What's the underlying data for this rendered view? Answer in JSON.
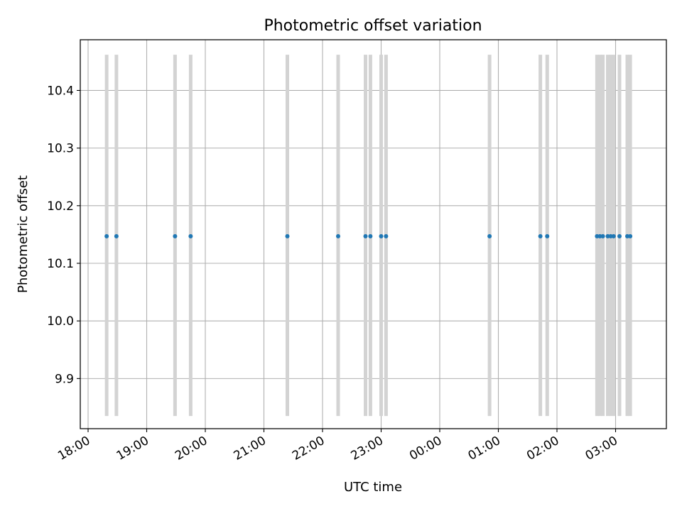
{
  "chart_data": {
    "type": "scatter",
    "title": "Photometric offset variation",
    "xlabel": "UTC time",
    "ylabel": "Photometric offset",
    "x_ticks": [
      "18:00",
      "19:00",
      "20:00",
      "21:00",
      "22:00",
      "23:00",
      "00:00",
      "01:00",
      "02:00",
      "03:00"
    ],
    "y_ticks": [
      "9.9",
      "10.0",
      "10.1",
      "10.2",
      "10.3",
      "10.4"
    ],
    "ylim": [
      9.813,
      10.488
    ],
    "xlim": [
      "17:52",
      "03:52"
    ],
    "grid": true,
    "colors": {
      "points": "#1f77b4",
      "bands": "#d3d3d3",
      "grid": "#b0b0b0"
    },
    "bands": {
      "ymin": 9.835,
      "ymax": 10.462
    },
    "points": [
      {
        "x": "18:19",
        "y": 10.147
      },
      {
        "x": "18:29",
        "y": 10.147
      },
      {
        "x": "19:29",
        "y": 10.147
      },
      {
        "x": "19:45",
        "y": 10.147
      },
      {
        "x": "21:24",
        "y": 10.147
      },
      {
        "x": "22:16",
        "y": 10.147
      },
      {
        "x": "22:44",
        "y": 10.147
      },
      {
        "x": "22:49",
        "y": 10.147
      },
      {
        "x": "23:00",
        "y": 10.147
      },
      {
        "x": "23:05",
        "y": 10.147
      },
      {
        "x": "00:51",
        "y": 10.147
      },
      {
        "x": "01:43",
        "y": 10.147
      },
      {
        "x": "01:50",
        "y": 10.147
      },
      {
        "x": "02:41",
        "y": 10.147
      },
      {
        "x": "02:44",
        "y": 10.147
      },
      {
        "x": "02:47",
        "y": 10.147
      },
      {
        "x": "02:52",
        "y": 10.147
      },
      {
        "x": "02:55",
        "y": 10.147
      },
      {
        "x": "02:58",
        "y": 10.147
      },
      {
        "x": "03:04",
        "y": 10.147
      },
      {
        "x": "03:12",
        "y": 10.147
      },
      {
        "x": "03:15",
        "y": 10.147
      }
    ]
  }
}
